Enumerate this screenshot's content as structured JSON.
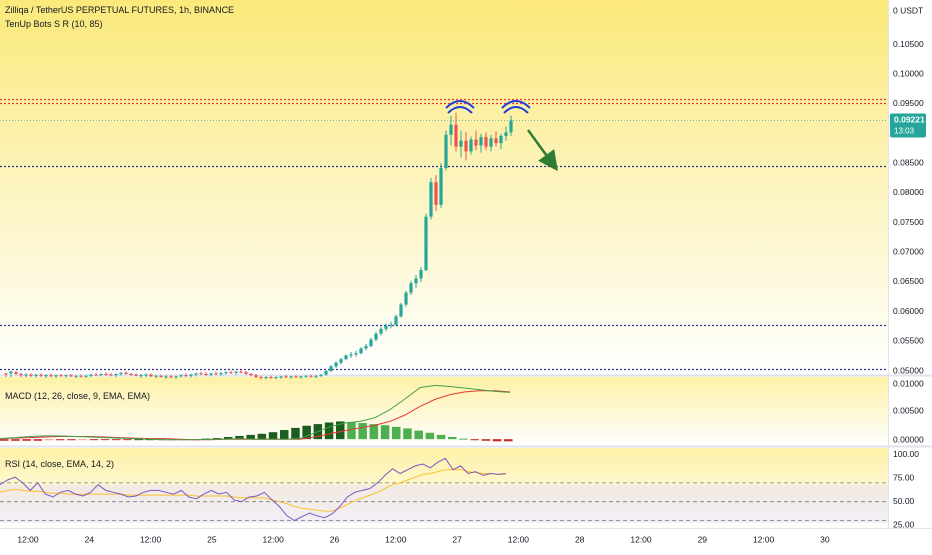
{
  "header": {
    "title": "Zilliqa / TetherUS PERPETUAL FUTURES, 1h, BINANCE",
    "indicator": "TenUp Bots S R (10, 85)"
  },
  "price_axis": {
    "unit": "USDT",
    "ticks": [
      "0.10500",
      "0.10000",
      "0.09500",
      "0.08500",
      "0.08000",
      "0.07500",
      "0.07000",
      "0.06500",
      "0.06000",
      "0.05500",
      "0.05000"
    ],
    "last_price": "0.09221",
    "countdown": "13:03"
  },
  "macd": {
    "label": "MACD (12, 26, close, 9, EMA, EMA)",
    "ticks": [
      "0.01000",
      "0.00500",
      "0.00000"
    ]
  },
  "rsi": {
    "label": "RSI (14, close, EMA, 14, 2)",
    "ticks": [
      "100.00",
      "75.00",
      "50.00",
      "25.00"
    ]
  },
  "time_axis": {
    "ticks": [
      "12:00",
      "24",
      "12:00",
      "25",
      "12:00",
      "26",
      "12:00",
      "27",
      "12:00",
      "28",
      "12:00",
      "29",
      "12:00",
      "30"
    ]
  },
  "colors": {
    "up": "#26a69a",
    "down": "#ef5350",
    "level_red": "#e53935",
    "level_blue": "#283593",
    "macd_line": "#43a047",
    "signal_line": "#e53935",
    "rsi_line": "#7e57c2",
    "rsi_ma": "#fbc02d",
    "arc": "#1e3fe0",
    "arrow": "#2e7d32",
    "badge": "#26a69a"
  },
  "chart_data": {
    "type": "candlestick",
    "title": "Zilliqa / TetherUS PERPETUAL FUTURES, 1h, BINANCE",
    "timeframe": "1h",
    "ylim": [
      0.0495,
      0.1125
    ],
    "x_ticks": [
      "12:00",
      "24",
      "12:00",
      "25",
      "12:00",
      "26",
      "12:00",
      "27",
      "12:00",
      "28",
      "12:00",
      "29",
      "12:00",
      "30"
    ],
    "last_price": 0.09221,
    "levels": [
      {
        "price": 0.0958,
        "color": "red",
        "style": "dotted"
      },
      {
        "price": 0.0951,
        "color": "red",
        "style": "dotted"
      },
      {
        "price": 0.0846,
        "color": "blue",
        "style": "dotted"
      },
      {
        "price": 0.0577,
        "color": "blue",
        "style": "dotted"
      },
      {
        "price": 0.0503,
        "color": "blue",
        "style": "dotted"
      }
    ],
    "candles": [
      [
        0.0496,
        0.0497,
        0.049,
        0.0495
      ],
      [
        0.0496,
        0.0501,
        0.049,
        0.0499
      ],
      [
        0.0498,
        0.05,
        0.0493,
        0.0495
      ],
      [
        0.0495,
        0.0497,
        0.049,
        0.0493
      ],
      [
        0.0493,
        0.0496,
        0.0489,
        0.0494
      ],
      [
        0.0494,
        0.0496,
        0.049,
        0.0492
      ],
      [
        0.0492,
        0.0495,
        0.0489,
        0.0494
      ],
      [
        0.0494,
        0.0496,
        0.049,
        0.0492
      ],
      [
        0.0492,
        0.0495,
        0.0488,
        0.0493
      ],
      [
        0.0493,
        0.0496,
        0.049,
        0.0491
      ],
      [
        0.0491,
        0.0494,
        0.0488,
        0.0493
      ],
      [
        0.0493,
        0.0495,
        0.049,
        0.0492
      ],
      [
        0.0492,
        0.0494,
        0.0489,
        0.0493
      ],
      [
        0.0493,
        0.0495,
        0.049,
        0.0491
      ],
      [
        0.0491,
        0.0493,
        0.0488,
        0.0492
      ],
      [
        0.0492,
        0.0494,
        0.0489,
        0.0491
      ],
      [
        0.0491,
        0.0493,
        0.0488,
        0.0492
      ],
      [
        0.0492,
        0.0495,
        0.049,
        0.0494
      ],
      [
        0.0494,
        0.0497,
        0.0492,
        0.0493
      ],
      [
        0.0493,
        0.0496,
        0.0491,
        0.0495
      ],
      [
        0.0495,
        0.0498,
        0.0492,
        0.0494
      ],
      [
        0.0494,
        0.0497,
        0.0491,
        0.0493
      ],
      [
        0.0493,
        0.0496,
        0.049,
        0.0495
      ],
      [
        0.0495,
        0.0498,
        0.0492,
        0.0497
      ],
      [
        0.0497,
        0.0499,
        0.0494,
        0.0495
      ],
      [
        0.0495,
        0.0497,
        0.0492,
        0.0494
      ],
      [
        0.0494,
        0.0496,
        0.0491,
        0.0492
      ],
      [
        0.0492,
        0.0495,
        0.0489,
        0.0493
      ],
      [
        0.0493,
        0.0496,
        0.049,
        0.0494
      ],
      [
        0.0494,
        0.0496,
        0.049,
        0.0491
      ],
      [
        0.0491,
        0.0494,
        0.0488,
        0.0492
      ],
      [
        0.0492,
        0.0494,
        0.0489,
        0.049
      ],
      [
        0.049,
        0.0493,
        0.0487,
        0.0491
      ],
      [
        0.0491,
        0.0493,
        0.0488,
        0.049
      ],
      [
        0.049,
        0.0492,
        0.0487,
        0.0491
      ],
      [
        0.0491,
        0.0494,
        0.0489,
        0.0493
      ],
      [
        0.0493,
        0.0496,
        0.049,
        0.0492
      ],
      [
        0.0492,
        0.0495,
        0.0489,
        0.0494
      ],
      [
        0.0494,
        0.0497,
        0.0491,
        0.0496
      ],
      [
        0.0496,
        0.0499,
        0.0493,
        0.0495
      ],
      [
        0.0495,
        0.0498,
        0.0492,
        0.0494
      ],
      [
        0.0494,
        0.0497,
        0.0491,
        0.0496
      ],
      [
        0.0496,
        0.0499,
        0.0493,
        0.0495
      ],
      [
        0.0495,
        0.0498,
        0.0492,
        0.0497
      ],
      [
        0.0497,
        0.05,
        0.0494,
        0.0498
      ],
      [
        0.0498,
        0.0501,
        0.0495,
        0.0497
      ],
      [
        0.0497,
        0.05,
        0.0494,
        0.0499
      ],
      [
        0.0499,
        0.0502,
        0.0496,
        0.0498
      ],
      [
        0.0498,
        0.05,
        0.0494,
        0.0495
      ],
      [
        0.0495,
        0.0497,
        0.0491,
        0.0493
      ],
      [
        0.0493,
        0.0495,
        0.0488,
        0.049
      ],
      [
        0.049,
        0.0492,
        0.0486,
        0.0489
      ],
      [
        0.0489,
        0.0491,
        0.0486,
        0.049
      ],
      [
        0.049,
        0.0492,
        0.0487,
        0.0489
      ],
      [
        0.0489,
        0.0491,
        0.0486,
        0.049
      ],
      [
        0.049,
        0.0492,
        0.0487,
        0.0491
      ],
      [
        0.0491,
        0.0493,
        0.0488,
        0.049
      ],
      [
        0.049,
        0.0492,
        0.0487,
        0.0491
      ],
      [
        0.0491,
        0.0493,
        0.0488,
        0.049
      ],
      [
        0.049,
        0.0492,
        0.0487,
        0.0491
      ],
      [
        0.0491,
        0.0493,
        0.0488,
        0.0492
      ],
      [
        0.0492,
        0.0494,
        0.0489,
        0.0491
      ],
      [
        0.0491,
        0.0493,
        0.0488,
        0.0492
      ],
      [
        0.0492,
        0.0495,
        0.049,
        0.0494
      ],
      [
        0.0494,
        0.0502,
        0.0492,
        0.05
      ],
      [
        0.05,
        0.051,
        0.0498,
        0.0508
      ],
      [
        0.0508,
        0.0516,
        0.0505,
        0.0514
      ],
      [
        0.0514,
        0.0522,
        0.0511,
        0.052
      ],
      [
        0.052,
        0.0528,
        0.0518,
        0.0526
      ],
      [
        0.0526,
        0.0532,
        0.0522,
        0.0528
      ],
      [
        0.0528,
        0.0534,
        0.0524,
        0.053
      ],
      [
        0.053,
        0.054,
        0.0528,
        0.0538
      ],
      [
        0.0538,
        0.0546,
        0.0535,
        0.0542
      ],
      [
        0.0542,
        0.0556,
        0.054,
        0.0553
      ],
      [
        0.0553,
        0.0566,
        0.055,
        0.0563
      ],
      [
        0.0563,
        0.0574,
        0.056,
        0.0571
      ],
      [
        0.0571,
        0.058,
        0.0567,
        0.0576
      ],
      [
        0.0576,
        0.0583,
        0.0572,
        0.0578
      ],
      [
        0.0578,
        0.0595,
        0.0576,
        0.0592
      ],
      [
        0.0592,
        0.0615,
        0.059,
        0.0612
      ],
      [
        0.0612,
        0.0635,
        0.0608,
        0.0632
      ],
      [
        0.0632,
        0.0652,
        0.0628,
        0.0648
      ],
      [
        0.0648,
        0.0662,
        0.064,
        0.0656
      ],
      [
        0.0656,
        0.0675,
        0.065,
        0.067
      ],
      [
        0.067,
        0.0765,
        0.0668,
        0.076
      ],
      [
        0.076,
        0.0825,
        0.0755,
        0.0818
      ],
      [
        0.0818,
        0.083,
        0.077,
        0.078
      ],
      [
        0.078,
        0.085,
        0.0775,
        0.0842
      ],
      [
        0.0842,
        0.0905,
        0.0838,
        0.0898
      ],
      [
        0.0898,
        0.093,
        0.088,
        0.0915
      ],
      [
        0.0915,
        0.0935,
        0.087,
        0.0878
      ],
      [
        0.0878,
        0.0905,
        0.086,
        0.0888
      ],
      [
        0.0888,
        0.0902,
        0.0855,
        0.087
      ],
      [
        0.087,
        0.0895,
        0.0865,
        0.089
      ],
      [
        0.089,
        0.0905,
        0.0872,
        0.088
      ],
      [
        0.088,
        0.09,
        0.0868,
        0.0894
      ],
      [
        0.0894,
        0.0902,
        0.0872,
        0.0878
      ],
      [
        0.0878,
        0.0898,
        0.087,
        0.0892
      ],
      [
        0.0892,
        0.0904,
        0.0878,
        0.0884
      ],
      [
        0.0884,
        0.09,
        0.0874,
        0.0896
      ],
      [
        0.0896,
        0.0912,
        0.0888,
        0.0902
      ],
      [
        0.0902,
        0.093,
        0.0896,
        0.0922
      ]
    ],
    "macd": {
      "ylim": [
        -0.0009,
        0.0112
      ],
      "macd_line": [
        0.0001,
        0.0003,
        0.0005,
        0.0006,
        0.0006,
        0.0005,
        0.0004,
        0.0003,
        0.0002,
        0.0001,
        0.0,
        -0.0001,
        -0.0001,
        -0.0001,
        0.0,
        0.0,
        0.0001,
        0.0,
        0.0,
        0.0,
        0.0001,
        0.0012,
        0.0023,
        0.003,
        0.0033,
        0.004,
        0.0055,
        0.0075,
        0.0096,
        0.01,
        0.0098,
        0.0095,
        0.0092,
        0.0089,
        0.0087
      ],
      "signal_line": [
        0.0001,
        0.0002,
        0.0003,
        0.0004,
        0.0005,
        0.0005,
        0.0005,
        0.0004,
        0.0003,
        0.0002,
        0.0001,
        0.0001,
        0.0,
        -0.0001,
        -0.0001,
        0.0,
        0.0,
        0.0,
        0.0,
        0.0,
        0.0,
        0.0004,
        0.001,
        0.0016,
        0.0021,
        0.0026,
        0.0033,
        0.0045,
        0.0061,
        0.0074,
        0.0083,
        0.0088,
        0.009,
        0.009,
        0.0088
      ],
      "histogram": [
        -0.0003,
        -0.0003,
        -0.0003,
        -0.0003,
        -0.0002,
        -0.0002,
        -0.0002,
        -0.0001,
        -0.0001,
        -0.0001,
        -0.0001,
        -0.0001,
        0.0,
        0.0,
        0.0,
        -0.0001,
        -0.0001,
        -0.0001,
        0.0001,
        0.0002,
        0.0004,
        0.0006,
        0.0008,
        0.001,
        0.0013,
        0.0017,
        0.0021,
        0.0025,
        0.0028,
        0.0031,
        0.0033,
        0.0032,
        0.003,
        0.0028,
        0.0026,
        0.0023,
        0.002,
        0.0016,
        0.0012,
        0.0008,
        0.0004,
        0.0001,
        -0.0002,
        -0.0003,
        -0.0004,
        -0.0004
      ]
    },
    "rsi": {
      "ylim": [
        22,
        106
      ],
      "levels": [
        70,
        50,
        30
      ],
      "rsi_line": [
        68,
        73,
        76,
        70,
        62,
        70,
        58,
        55,
        60,
        62,
        58,
        56,
        60,
        68,
        62,
        60,
        58,
        55,
        56,
        60,
        62,
        62,
        60,
        58,
        62,
        55,
        53,
        58,
        62,
        58,
        60,
        52,
        50,
        55,
        56,
        60,
        52,
        45,
        35,
        30,
        34,
        38,
        35,
        33,
        37,
        45,
        55,
        60,
        62,
        64,
        70,
        78,
        85,
        80,
        84,
        88,
        90,
        86,
        92,
        96,
        84,
        88,
        80,
        82,
        78,
        80,
        79,
        80
      ],
      "rsi_ma": [
        60,
        62,
        63,
        62,
        61,
        61,
        60,
        59,
        59,
        58,
        58,
        58,
        58,
        58,
        58,
        58,
        58,
        57,
        57,
        57,
        57,
        57,
        57,
        57,
        57,
        57,
        56,
        56,
        56,
        56,
        56,
        55,
        54,
        54,
        54,
        54,
        52,
        50,
        48,
        45,
        43,
        42,
        41,
        40,
        40,
        43,
        47,
        51,
        54,
        57,
        60,
        64,
        68,
        70,
        73,
        76,
        79,
        80,
        82,
        84,
        84,
        84,
        82,
        81,
        80,
        80,
        79,
        79
      ]
    }
  }
}
